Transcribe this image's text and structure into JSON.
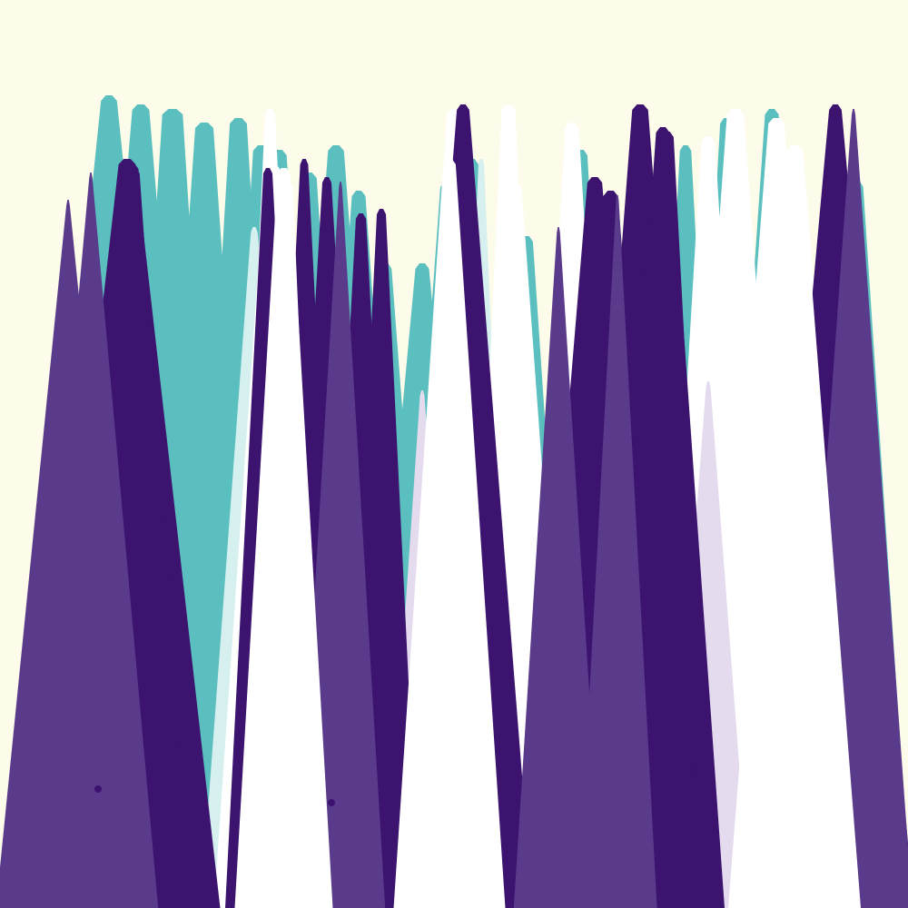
{
  "palette": {
    "background": "#fdfbe9",
    "teal": "#5bbfbf",
    "pale_teal": "#d6f0ef",
    "purple": "#3c1470",
    "mid_purple": "#5a3a8a",
    "lavender": "#e4dcee",
    "white": "#ffffff"
  },
  "artwork": {
    "description_style": "abstract generative spikes",
    "layers": [
      {
        "name": "teal-back",
        "color": "teal",
        "spikes": [
          [
            40,
            105,
            200,
            70
          ],
          [
            95,
            115,
            215,
            75
          ],
          [
            150,
            120,
            230,
            90
          ],
          [
            180,
            135,
            270,
            80
          ],
          [
            225,
            130,
            300,
            75
          ],
          [
            250,
            160,
            325,
            70
          ],
          [
            265,
            165,
            350,
            65
          ],
          [
            300,
            190,
            380,
            70
          ],
          [
            320,
            160,
            420,
            70
          ],
          [
            350,
            210,
            440,
            60
          ],
          [
            380,
            290,
            470,
            50
          ],
          [
            410,
            290,
            520,
            60
          ],
          [
            445,
            200,
            540,
            60
          ],
          [
            480,
            175,
            560,
            55
          ],
          [
            540,
            260,
            620,
            55
          ],
          [
            600,
            165,
            680,
            55
          ],
          [
            720,
            160,
            790,
            50
          ],
          [
            760,
            130,
            840,
            55
          ],
          [
            800,
            120,
            900,
            60
          ],
          [
            900,
            200,
            990,
            45
          ]
        ]
      },
      {
        "name": "pale-teal",
        "color": "pale_teal",
        "spikes": [
          [
            230,
            250,
            330,
            30
          ],
          [
            500,
            175,
            560,
            25
          ],
          [
            740,
            240,
            810,
            25
          ],
          [
            760,
            200,
            860,
            35
          ],
          [
            880,
            300,
            960,
            30
          ]
        ]
      },
      {
        "name": "white-spikes",
        "color": "white",
        "spikes": [
          [
            255,
            180,
            345,
            65
          ],
          [
            265,
            120,
            330,
            45
          ],
          [
            460,
            120,
            540,
            65
          ],
          [
            520,
            200,
            610,
            75
          ],
          [
            530,
            115,
            590,
            60
          ],
          [
            590,
            135,
            670,
            60
          ],
          [
            740,
            150,
            820,
            60
          ],
          [
            760,
            120,
            860,
            75
          ],
          [
            800,
            130,
            910,
            70
          ],
          [
            820,
            160,
            930,
            75
          ],
          [
            840,
            280,
            980,
            70
          ]
        ]
      },
      {
        "name": "lavender",
        "color": "lavender",
        "spikes": [
          [
            270,
            350,
            350,
            20
          ],
          [
            430,
            430,
            500,
            20
          ],
          [
            740,
            420,
            820,
            20
          ],
          [
            880,
            500,
            960,
            20
          ]
        ]
      },
      {
        "name": "purple-front",
        "color": "purple",
        "spikes": [
          [
            60,
            175,
            220,
            75
          ],
          [
            90,
            180,
            200,
            60
          ],
          [
            100,
            185,
            195,
            50
          ],
          [
            260,
            185,
            330,
            40
          ],
          [
            300,
            175,
            370,
            35
          ],
          [
            320,
            195,
            400,
            40
          ],
          [
            365,
            235,
            430,
            45
          ],
          [
            390,
            230,
            450,
            40
          ],
          [
            450,
            115,
            570,
            55
          ],
          [
            460,
            180,
            560,
            50
          ],
          [
            600,
            195,
            710,
            65
          ],
          [
            625,
            210,
            720,
            65
          ],
          [
            650,
            115,
            760,
            70
          ],
          [
            680,
            140,
            780,
            60
          ],
          [
            700,
            145,
            770,
            55
          ],
          [
            850,
            115,
            990,
            55
          ]
        ]
      },
      {
        "name": "mid-purple-lines",
        "color": "mid_purple",
        "spikes": [
          [
            0,
            220,
            150,
            15
          ],
          [
            30,
            190,
            170,
            14
          ],
          [
            330,
            200,
            420,
            14
          ],
          [
            570,
            250,
            660,
            14
          ],
          [
            640,
            215,
            720,
            12
          ],
          [
            880,
            120,
            1000,
            16
          ]
        ]
      },
      {
        "name": "white-front",
        "color": "white",
        "spikes": [
          [
            275,
            185,
            350,
            55
          ],
          [
            290,
            200,
            345,
            40
          ],
          [
            450,
            175,
            540,
            55
          ],
          [
            465,
            200,
            530,
            45
          ],
          [
            820,
            160,
            930,
            60
          ],
          [
            840,
            165,
            915,
            45
          ]
        ]
      }
    ],
    "dots": [
      [
        463,
        662,
        "white"
      ],
      [
        365,
        884,
        "purple"
      ],
      [
        765,
        851,
        "purple"
      ],
      [
        108,
        869,
        "purple"
      ],
      [
        488,
        828,
        "white"
      ],
      [
        850,
        848,
        "white"
      ]
    ]
  }
}
